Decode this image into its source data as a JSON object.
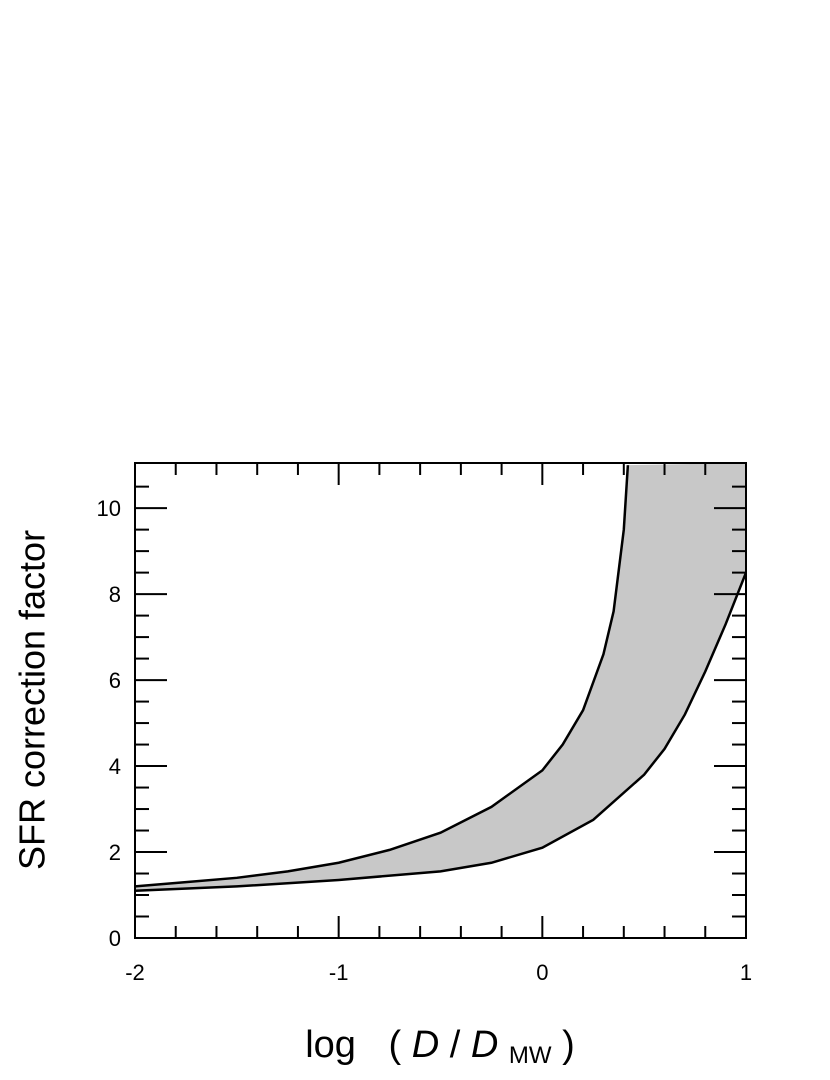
{
  "chart_data": {
    "type": "band",
    "y_label": "SFR correction factor",
    "x_label_parts": [
      "log",
      "(",
      "D",
      "/",
      "D",
      "MW",
      ")"
    ],
    "series": [
      {
        "x": [
          -2,
          -1.75,
          -1.5,
          -1.25,
          -1,
          -0.75,
          -0.5,
          -0.25,
          0,
          0.1,
          0.2,
          0.3,
          0.35,
          0.4,
          0.42
        ],
        "values": [
          1.2,
          1.3,
          1.4,
          1.55,
          1.75,
          2.05,
          2.45,
          3.05,
          3.9,
          4.5,
          5.3,
          6.6,
          7.6,
          9.5,
          11
        ],
        "color": "#000000"
      },
      {
        "x": [
          -2,
          -1.5,
          -1,
          -0.5,
          -0.25,
          0,
          0.25,
          0.5,
          0.6,
          0.7,
          0.8,
          0.9,
          1
        ],
        "values": [
          1.1,
          1.2,
          1.35,
          1.55,
          1.75,
          2.1,
          2.75,
          3.8,
          4.4,
          5.2,
          6.2,
          7.3,
          8.5
        ],
        "color": "#000000"
      }
    ],
    "fill": "#c8c8c8",
    "xlim": [
      -2,
      1
    ],
    "ylim": [
      0,
      11.05
    ],
    "xticks": [
      -2,
      -1,
      0,
      1
    ],
    "yticks": [
      0,
      2,
      4,
      6,
      8,
      10
    ],
    "xminorticks": [
      -1.8,
      -1.6,
      -1.4,
      -1.2,
      -0.8,
      -0.6,
      -0.4,
      -0.2,
      0.2,
      0.4,
      0.6,
      0.8
    ],
    "yminorticks": [
      0.5,
      1,
      1.5,
      2.5,
      3,
      3.5,
      4.5,
      5,
      5.5,
      6.5,
      7,
      7.5,
      8.5,
      9,
      9.5,
      10.5
    ]
  }
}
